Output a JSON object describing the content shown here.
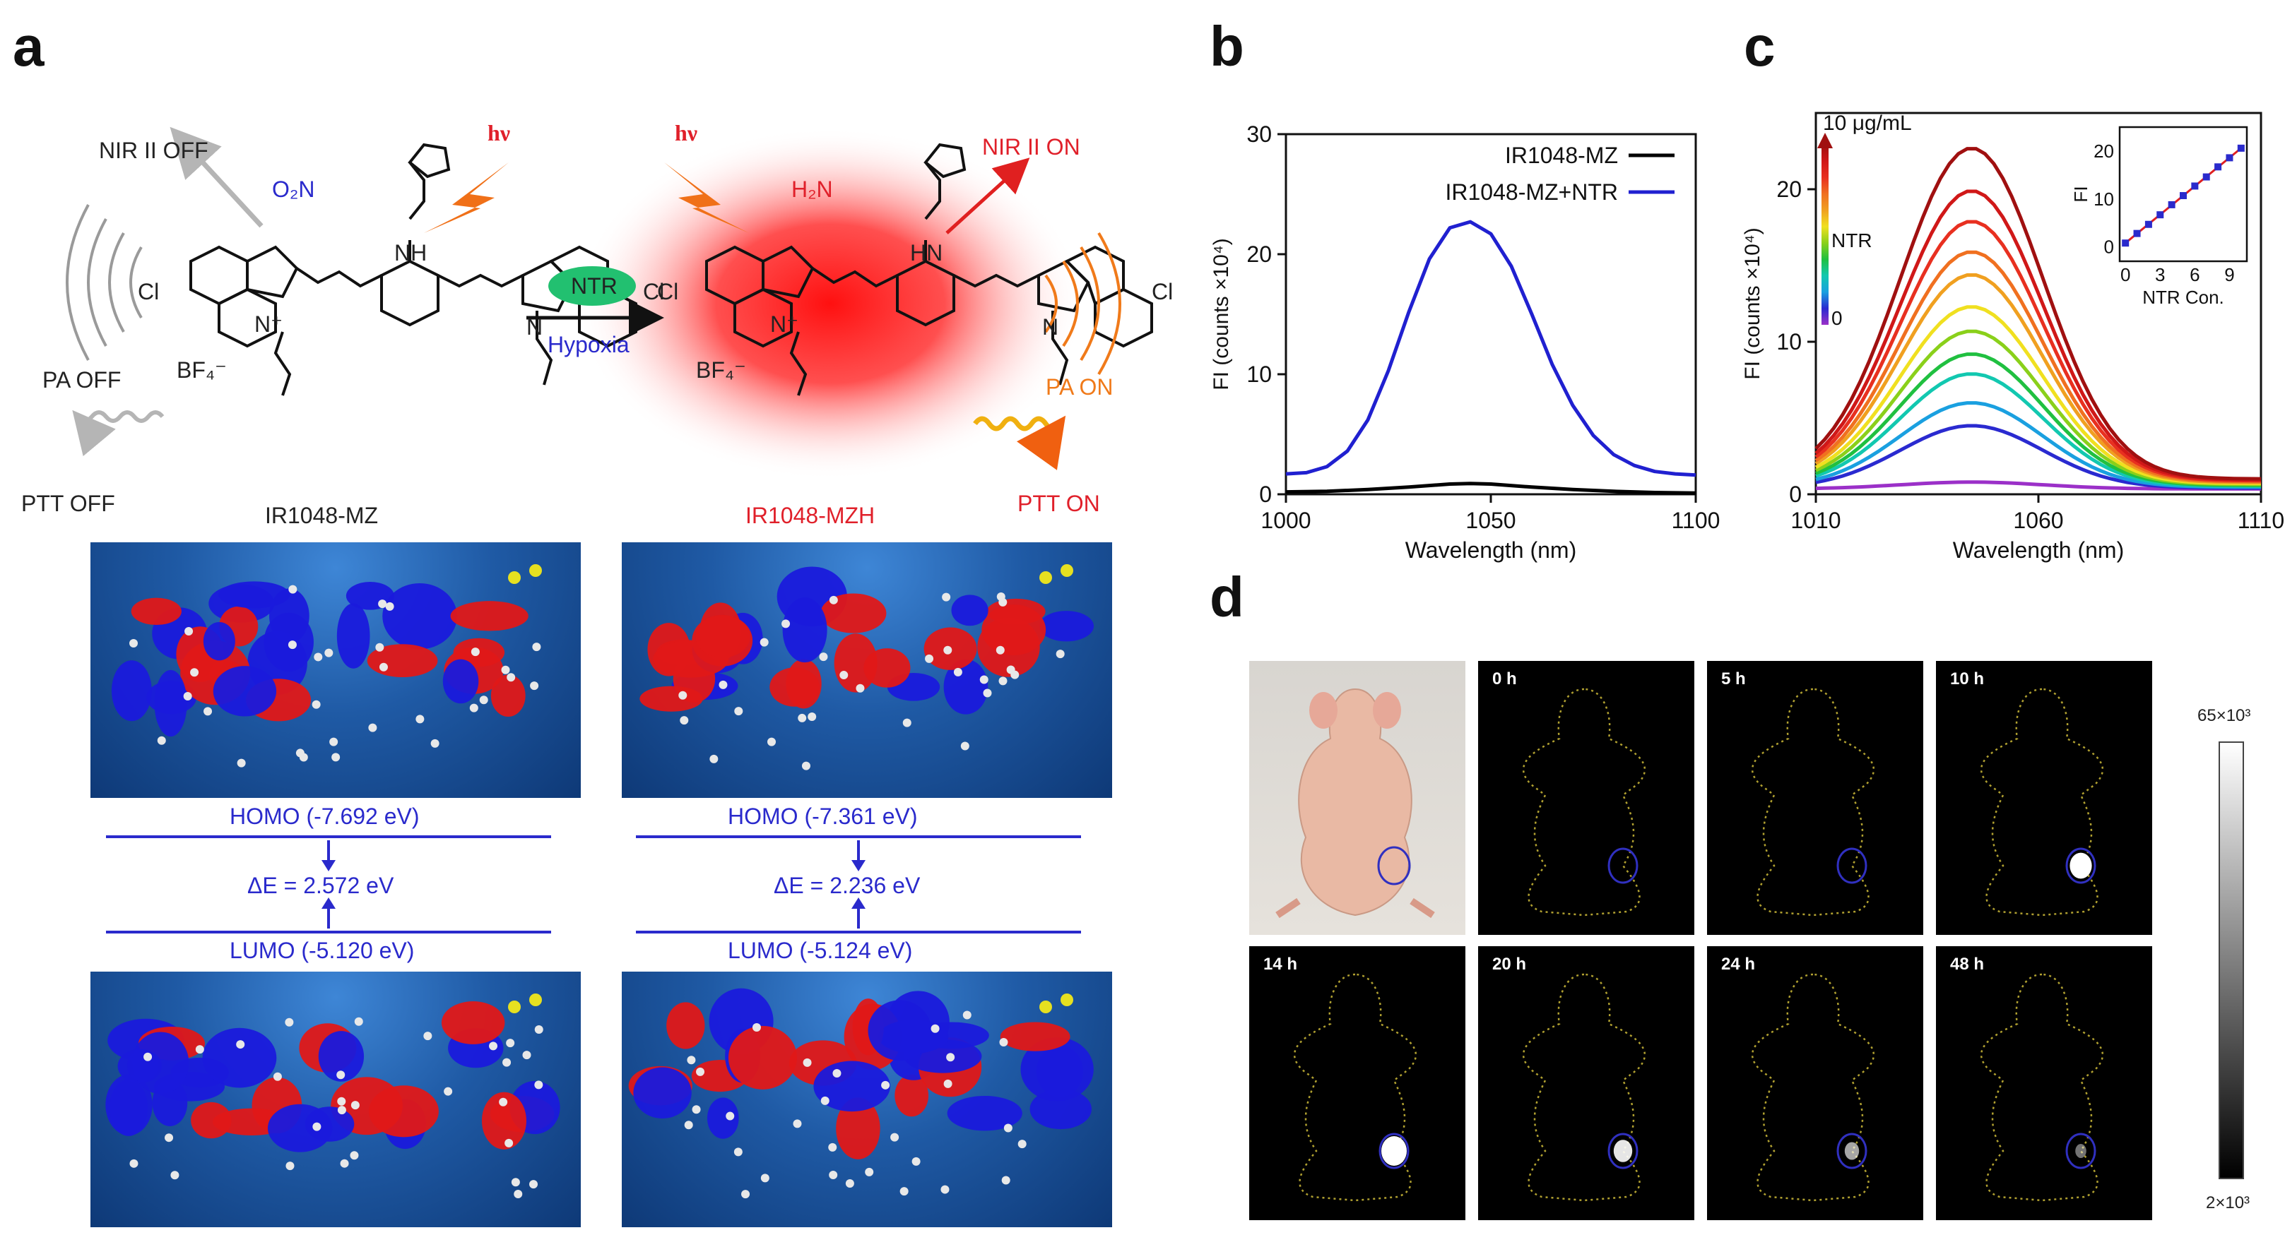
{
  "panels": {
    "a": "a",
    "b": "b",
    "c": "c",
    "d": "d"
  },
  "scheme": {
    "left_labels": {
      "nir_off": "NIR II OFF",
      "pa_off": "PA OFF",
      "ptt_off": "PTT OFF",
      "hv": "hν",
      "o2n": "O₂N",
      "cl1": "Cl",
      "cl2": "Cl",
      "nh": "NH",
      "bf4": "BF₄⁻",
      "nplus": "N⁺",
      "n": "N"
    },
    "arrow": {
      "ntr": "NTR",
      "hypoxia": "Hypoxia"
    },
    "right_labels": {
      "nir_on": "NIR II ON",
      "pa_on": "PA ON",
      "ptt_on": "PTT ON",
      "hv": "hν",
      "h2n": "H₂N",
      "cl1": "Cl",
      "cl2": "Cl",
      "hn": "HN",
      "bf4": "BF₄⁻",
      "nplus": "N⁺",
      "n": "N"
    },
    "legend_left": "IR1048-MZ",
    "legend_right": "IR1048-MZH"
  },
  "orbitals": {
    "left": {
      "homo": "HOMO (-7.692 eV)",
      "delta": "ΔE = 2.572 eV",
      "lumo": "LUMO (-5.120 eV)"
    },
    "right": {
      "homo": "HOMO (-7.361 eV)",
      "delta": "ΔE = 2.236 eV",
      "lumo": "LUMO (-5.124 eV)"
    }
  },
  "chart_data": [
    {
      "type": "line",
      "panel": "b",
      "xlabel": "Wavelength (nm)",
      "ylabel": "FI (counts ×10⁴)",
      "xlim": [
        1000,
        1100
      ],
      "ylim": [
        0,
        30
      ],
      "xticks": [
        1000,
        1050,
        1100
      ],
      "yticks": [
        0,
        10,
        20,
        30
      ],
      "legend_position": "top-right",
      "series": [
        {
          "name": "IR1048-MZ",
          "color": "#000000",
          "x": [
            1000,
            1010,
            1020,
            1030,
            1040,
            1045,
            1050,
            1060,
            1070,
            1080,
            1090,
            1100
          ],
          "y": [
            0.2,
            0.25,
            0.4,
            0.6,
            0.85,
            0.9,
            0.85,
            0.6,
            0.4,
            0.25,
            0.15,
            0.1
          ]
        },
        {
          "name": "IR1048-MZ+NTR",
          "color": "#2020d0",
          "x": [
            1000,
            1005,
            1010,
            1015,
            1020,
            1025,
            1030,
            1035,
            1040,
            1045,
            1050,
            1055,
            1060,
            1065,
            1070,
            1075,
            1080,
            1085,
            1090,
            1095,
            1100
          ],
          "y": [
            1.7,
            1.8,
            2.3,
            3.6,
            6.2,
            10.3,
            15.2,
            19.6,
            22.2,
            22.7,
            21.7,
            19.0,
            15.0,
            10.8,
            7.4,
            4.9,
            3.3,
            2.4,
            1.9,
            1.7,
            1.6
          ]
        }
      ]
    },
    {
      "type": "line",
      "panel": "c",
      "xlabel": "Wavelength (nm)",
      "ylabel": "FI (counts ×10⁴)",
      "xlim": [
        1010,
        1110
      ],
      "ylim": [
        0,
        25
      ],
      "xticks": [
        1010,
        1060,
        1110
      ],
      "yticks": [
        0,
        10,
        20
      ],
      "peak_wavelength": 1045,
      "peaks": [
        0.8,
        4.5,
        6.0,
        7.9,
        9.2,
        10.7,
        12.3,
        14.4,
        15.9,
        17.9,
        19.9,
        22.7
      ],
      "colors": [
        "#9b30c8",
        "#2a2ad0",
        "#1aa0e0",
        "#12c8b0",
        "#20c040",
        "#8ad01a",
        "#f0e020",
        "#f0a020",
        "#f07020",
        "#e83020",
        "#d01818",
        "#a01010"
      ],
      "gradient_legend": {
        "top": "10 μg/mL",
        "middle": "NTR",
        "bottom": "0"
      },
      "inset": {
        "type": "scatter",
        "xlabel": "NTR Con.",
        "ylabel": "FI",
        "xlim": [
          -0.5,
          10.5
        ],
        "ylim": [
          -3,
          25
        ],
        "xticks": [
          0,
          3,
          6,
          9
        ],
        "yticks": [
          0,
          10,
          20
        ],
        "x": [
          0,
          1,
          2,
          3,
          4,
          5,
          6,
          7,
          8,
          9,
          10
        ],
        "y": [
          0.8,
          2.8,
          4.7,
          6.7,
          8.8,
          10.7,
          12.7,
          14.6,
          16.7,
          18.6,
          20.6
        ],
        "fit": [
          [
            0,
            0.8
          ],
          [
            10,
            20.6
          ]
        ]
      }
    }
  ],
  "imaging": {
    "times": [
      "0 h",
      "5 h",
      "10 h",
      "14 h",
      "20 h",
      "24 h",
      "48 h"
    ],
    "signal": [
      0,
      0,
      0.8,
      1.0,
      0.6,
      0.35,
      0.15
    ],
    "colorbar_max": "65×10³",
    "colorbar_min": "2×10³"
  }
}
